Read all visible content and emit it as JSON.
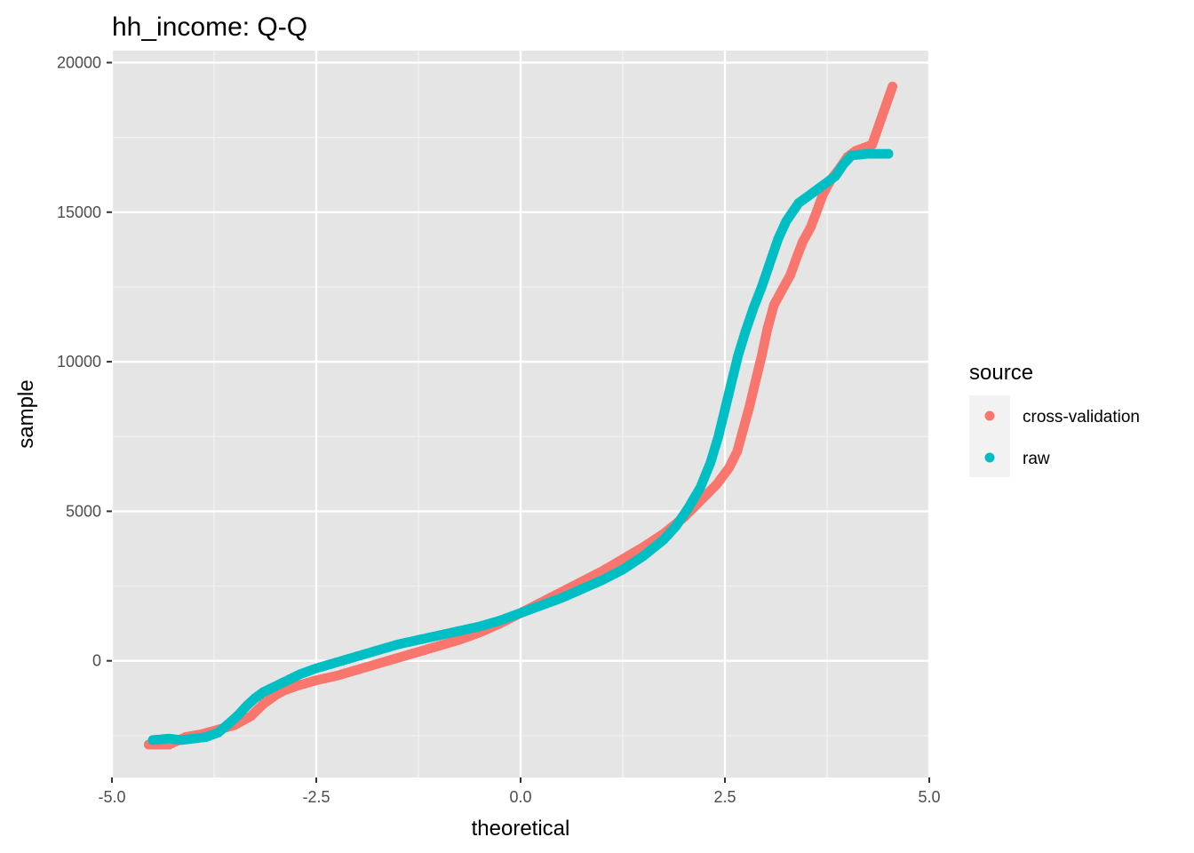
{
  "chart_data": {
    "type": "scatter",
    "title": "hh_income: Q-Q",
    "xlabel": "theoretical",
    "ylabel": "sample",
    "xlim": [
      -5.0,
      5.0
    ],
    "ylim": [
      -3900,
      20400
    ],
    "x_ticks": [
      -5.0,
      -2.5,
      0.0,
      2.5,
      5.0
    ],
    "x_tick_labels": [
      "-5.0",
      "-2.5",
      "0.0",
      "2.5",
      "5.0"
    ],
    "y_ticks": [
      0,
      5000,
      10000,
      15000,
      20000
    ],
    "y_tick_labels": [
      "0",
      "5000",
      "10000",
      "15000",
      "20000"
    ],
    "grid": true,
    "panel_color": "#e5e5e5",
    "legend": {
      "title": "source",
      "position": "right",
      "entries": [
        "cross-validation",
        "raw"
      ]
    },
    "series": [
      {
        "name": "cross-validation",
        "color": "#F8766D",
        "points": [
          [
            -4.55,
            -2800
          ],
          [
            -4.3,
            -2800
          ],
          [
            -4.1,
            -2550
          ],
          [
            -3.9,
            -2450
          ],
          [
            -3.7,
            -2300
          ],
          [
            -3.5,
            -2150
          ],
          [
            -3.3,
            -1850
          ],
          [
            -3.15,
            -1450
          ],
          [
            -3.0,
            -1150
          ],
          [
            -2.9,
            -1000
          ],
          [
            -2.75,
            -850
          ],
          [
            -2.5,
            -650
          ],
          [
            -2.25,
            -500
          ],
          [
            -2.0,
            -300
          ],
          [
            -1.75,
            -100
          ],
          [
            -1.5,
            100
          ],
          [
            -1.25,
            300
          ],
          [
            -1.0,
            500
          ],
          [
            -0.75,
            700
          ],
          [
            -0.5,
            950
          ],
          [
            -0.25,
            1250
          ],
          [
            0.0,
            1600
          ],
          [
            0.25,
            1950
          ],
          [
            0.5,
            2300
          ],
          [
            0.75,
            2650
          ],
          [
            1.0,
            3000
          ],
          [
            1.25,
            3400
          ],
          [
            1.5,
            3800
          ],
          [
            1.75,
            4250
          ],
          [
            2.0,
            4800
          ],
          [
            2.2,
            5350
          ],
          [
            2.4,
            5900
          ],
          [
            2.55,
            6450
          ],
          [
            2.65,
            7000
          ],
          [
            2.72,
            7700
          ],
          [
            2.8,
            8500
          ],
          [
            2.87,
            9300
          ],
          [
            2.95,
            10200
          ],
          [
            3.02,
            11100
          ],
          [
            3.1,
            11900
          ],
          [
            3.2,
            12400
          ],
          [
            3.3,
            12900
          ],
          [
            3.38,
            13500
          ],
          [
            3.45,
            14000
          ],
          [
            3.55,
            14500
          ],
          [
            3.62,
            15000
          ],
          [
            3.7,
            15600
          ],
          [
            3.8,
            16100
          ],
          [
            3.9,
            16450
          ],
          [
            4.0,
            16850
          ],
          [
            4.1,
            17050
          ],
          [
            4.2,
            17150
          ],
          [
            4.3,
            17250
          ],
          [
            4.55,
            19200
          ]
        ]
      },
      {
        "name": "raw",
        "color": "#00BFC4",
        "points": [
          [
            -4.5,
            -2650
          ],
          [
            -4.3,
            -2600
          ],
          [
            -4.15,
            -2650
          ],
          [
            -4.0,
            -2600
          ],
          [
            -3.85,
            -2550
          ],
          [
            -3.7,
            -2400
          ],
          [
            -3.55,
            -2050
          ],
          [
            -3.45,
            -1800
          ],
          [
            -3.35,
            -1500
          ],
          [
            -3.25,
            -1250
          ],
          [
            -3.15,
            -1050
          ],
          [
            -3.0,
            -850
          ],
          [
            -2.85,
            -650
          ],
          [
            -2.7,
            -450
          ],
          [
            -2.5,
            -250
          ],
          [
            -2.25,
            -50
          ],
          [
            -2.0,
            150
          ],
          [
            -1.75,
            350
          ],
          [
            -1.5,
            550
          ],
          [
            -1.25,
            700
          ],
          [
            -1.0,
            850
          ],
          [
            -0.75,
            1000
          ],
          [
            -0.5,
            1150
          ],
          [
            -0.25,
            1350
          ],
          [
            0.0,
            1600
          ],
          [
            0.25,
            1850
          ],
          [
            0.5,
            2100
          ],
          [
            0.75,
            2400
          ],
          [
            1.0,
            2700
          ],
          [
            1.25,
            3050
          ],
          [
            1.5,
            3500
          ],
          [
            1.75,
            4050
          ],
          [
            1.9,
            4500
          ],
          [
            2.05,
            5100
          ],
          [
            2.2,
            5800
          ],
          [
            2.32,
            6600
          ],
          [
            2.42,
            7500
          ],
          [
            2.5,
            8400
          ],
          [
            2.58,
            9300
          ],
          [
            2.66,
            10200
          ],
          [
            2.75,
            11000
          ],
          [
            2.85,
            11800
          ],
          [
            2.95,
            12500
          ],
          [
            3.05,
            13300
          ],
          [
            3.15,
            14100
          ],
          [
            3.25,
            14700
          ],
          [
            3.4,
            15300
          ],
          [
            3.55,
            15600
          ],
          [
            3.7,
            15900
          ],
          [
            3.85,
            16200
          ],
          [
            3.95,
            16600
          ],
          [
            4.05,
            16900
          ],
          [
            4.25,
            16950
          ],
          [
            4.5,
            16950
          ]
        ]
      }
    ]
  }
}
